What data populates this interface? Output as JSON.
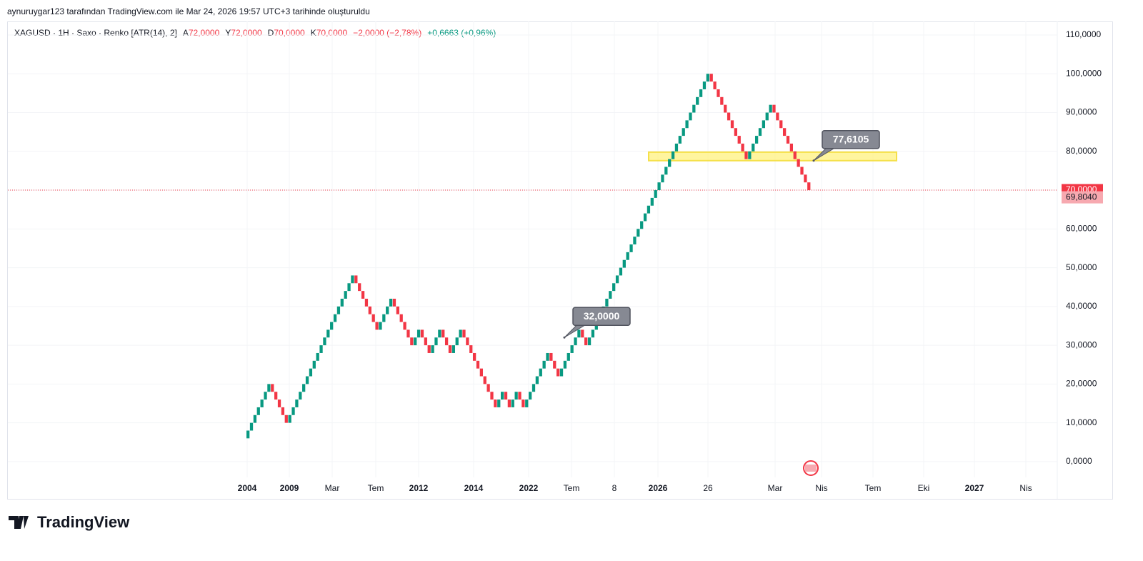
{
  "header": {
    "caption": "aynuruygar123 tarafından TradingView.com ile Mar 24, 2026 19:57 UTC+3 tarihinde oluşturuldu",
    "brand": "TradingView"
  },
  "chart_data": {
    "type": "renko",
    "legend": {
      "symbol": "XAGUSD · 1H · Saxo · Renko [ATR(14), 2]",
      "ohlc": [
        {
          "key": "A",
          "text": "72,0000"
        },
        {
          "key": "Y",
          "text": "72,0000"
        },
        {
          "key": "D",
          "text": "70,0000"
        },
        {
          "key": "K",
          "text": "70,0000"
        }
      ],
      "change": "−2,0000 (−2,78%)",
      "extra": "+0,6663 (+0,96%)"
    },
    "up_color": "#089981",
    "down_color": "#f23645",
    "open": 6,
    "values": [
      8,
      10,
      12,
      14,
      16,
      18,
      20,
      18,
      16,
      14,
      12,
      10,
      12,
      14,
      16,
      18,
      20,
      22,
      24,
      26,
      28,
      30,
      32,
      34,
      36,
      38,
      40,
      42,
      44,
      46,
      48,
      46,
      44,
      42,
      40,
      38,
      36,
      34,
      36,
      38,
      40,
      42,
      40,
      38,
      36,
      34,
      32,
      30,
      32,
      34,
      32,
      30,
      28,
      30,
      32,
      34,
      32,
      30,
      28,
      30,
      32,
      34,
      32,
      30,
      28,
      26,
      24,
      22,
      20,
      18,
      16,
      14,
      16,
      18,
      16,
      14,
      16,
      18,
      16,
      14,
      16,
      18,
      20,
      22,
      24,
      26,
      28,
      26,
      24,
      22,
      24,
      26,
      28,
      30,
      32,
      34,
      32,
      30,
      32,
      34,
      36,
      38,
      40,
      42,
      44,
      46,
      48,
      50,
      52,
      54,
      56,
      58,
      60,
      62,
      64,
      66,
      68,
      70,
      72,
      74,
      76,
      78,
      80,
      82,
      84,
      86,
      88,
      90,
      92,
      94,
      96,
      98,
      100,
      98,
      96,
      94,
      92,
      90,
      88,
      86,
      84,
      82,
      80,
      78,
      80,
      82,
      84,
      86,
      88,
      90,
      92,
      90,
      88,
      86,
      84,
      82,
      80,
      78,
      76,
      74,
      72,
      70
    ],
    "ylim": [
      -9.6,
      113.5
    ],
    "yticks": [
      {
        "value": 0,
        "label": "0,0000"
      },
      {
        "value": 10,
        "label": "10,0000"
      },
      {
        "value": 20,
        "label": "20,0000"
      },
      {
        "value": 30,
        "label": "30,0000"
      },
      {
        "value": 40,
        "label": "40,0000"
      },
      {
        "value": 50,
        "label": "50,0000"
      },
      {
        "value": 60,
        "label": "60,0000"
      },
      {
        "value": 70,
        "label": "70,0000"
      },
      {
        "value": 80,
        "label": "80,0000"
      },
      {
        "value": 90,
        "label": "90,0000"
      },
      {
        "value": 100,
        "label": "100,0000"
      },
      {
        "value": 110,
        "label": "110,0000"
      }
    ],
    "x_labels": [
      "2004",
      "2009",
      "Mar",
      "Tem",
      "2012",
      "2014",
      "2022",
      "Tem",
      "8",
      "2026",
      "26",
      "Mar",
      "Nis",
      "Tem",
      "Eki",
      "2027",
      "Nis"
    ],
    "grid": true,
    "last_price": {
      "value": 70,
      "label": "70,0000",
      "color": "#f23645"
    },
    "close_price": {
      "value": 69.804,
      "label": "69,8040",
      "color": "#f7a9b0"
    },
    "zone": {
      "top": 79.8,
      "bottom": 77.6,
      "color": "#fff176"
    },
    "callouts": [
      {
        "value": 77.6105,
        "label": "77,6105"
      },
      {
        "value": 32,
        "label": "32,0000"
      }
    ]
  }
}
